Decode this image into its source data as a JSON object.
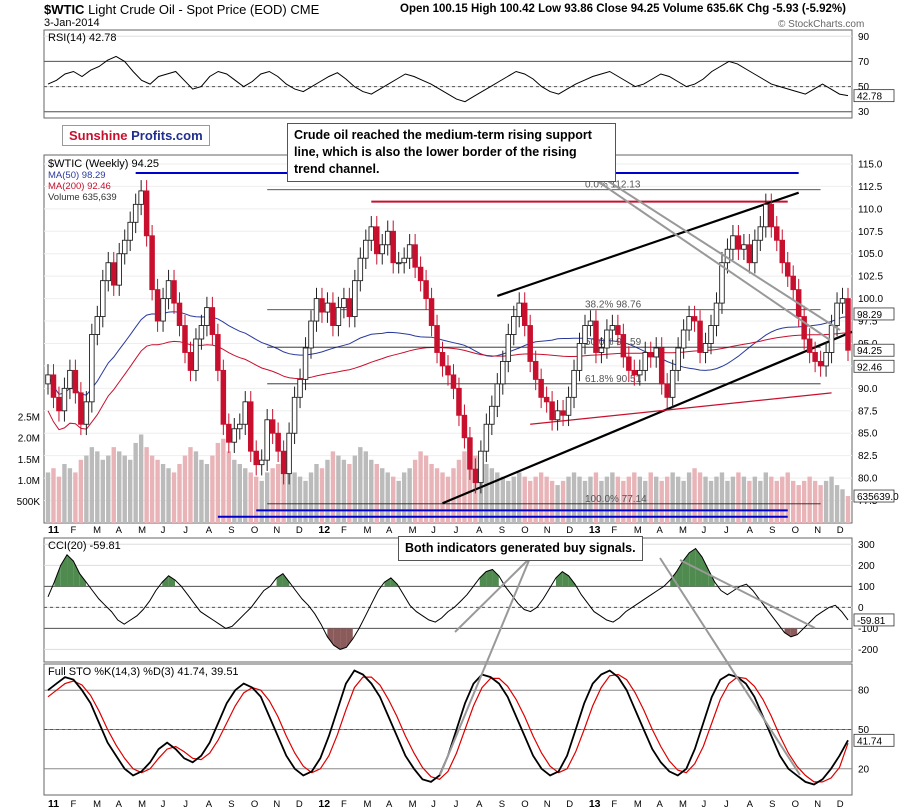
{
  "header": {
    "symbol": "$WTIC",
    "name": "Light Crude Oil - Spot Price (EOD)",
    "exchange": "CME",
    "date": "3-Jan-2014",
    "ohlc": "Open 100.15  High 100.42  Low 93.86  Close 94.25  Volume 635.6K  Chg -5.93 (-5.92%)",
    "watermark": "© StockCharts.com"
  },
  "brand": {
    "part1": "Sunshine",
    "part2": "Profits.com"
  },
  "annotations": {
    "top": "Crude oil reached the medium-term rising support line, which is also the lower border of the rising trend channel.",
    "bottom": "Both indicators generated buy signals."
  },
  "colors": {
    "up": "#222222",
    "down": "#c8102e",
    "ma50": "#2a3a9c",
    "ma200": "#c8102e",
    "blue_line": "#0000cc",
    "green_fill": "#4f8a4f",
    "brown_fill": "#8b5a5a"
  },
  "chart_data": [
    {
      "type": "line",
      "panel": "RSI",
      "title": "RSI(14) 42.78",
      "y_ticks": [
        30,
        50,
        70,
        90
      ],
      "ylim": [
        25,
        95
      ],
      "last_label": "42.78",
      "values": [
        52,
        55,
        60,
        62,
        58,
        63,
        66,
        71,
        74,
        70,
        62,
        55,
        52,
        58,
        60,
        62,
        55,
        48,
        50,
        58,
        62,
        60,
        55,
        50,
        54,
        60,
        62,
        58,
        52,
        48,
        46,
        50,
        54,
        58,
        61,
        56,
        50,
        46,
        44,
        48,
        52,
        56,
        60,
        58,
        55,
        52,
        48,
        44,
        40,
        38,
        42,
        46,
        50,
        54,
        58,
        62,
        60,
        56,
        50,
        46,
        44,
        48,
        52,
        55,
        58,
        60,
        62,
        58,
        54,
        50,
        52,
        56,
        60,
        58,
        54,
        50,
        52,
        56,
        62,
        66,
        70,
        68,
        64,
        60,
        56,
        52,
        50,
        48,
        46,
        44,
        48,
        52,
        48,
        44,
        42.78
      ]
    },
    {
      "type": "candlestick",
      "panel": "price",
      "title": "$WTIC (Weekly) 94.25",
      "legend": [
        "MA(50) 98.29",
        "MA(200) 92.46",
        "Volume 635,639"
      ],
      "y_ticks": [
        77.5,
        80,
        82.5,
        85,
        87.5,
        90,
        92.5,
        95,
        97.5,
        100,
        102.5,
        105,
        107.5,
        110,
        112.5,
        115
      ],
      "ylim": [
        75,
        116
      ],
      "vol_ticks": [
        "500K",
        "1.0M",
        "1.5M",
        "2.0M",
        "2.5M"
      ],
      "fib_labels": [
        "0.0% 112.13",
        "38.2% 98.76",
        "50.0% 94.59",
        "61.8% 90.51",
        "100.0% 77.14"
      ],
      "fib_levels": [
        112.13,
        98.76,
        94.59,
        90.51,
        77.14
      ],
      "right_labels": [
        "98.29",
        "94.25",
        "92.46",
        "635639.0"
      ],
      "x_labels": [
        "11",
        "F",
        "M",
        "A",
        "M",
        "J",
        "J",
        "A",
        "S",
        "O",
        "N",
        "D",
        "12",
        "F",
        "M",
        "A",
        "M",
        "J",
        "J",
        "A",
        "S",
        "O",
        "N",
        "D",
        "13",
        "F",
        "M",
        "A",
        "M",
        "J",
        "J",
        "A",
        "S",
        "O",
        "N",
        "D"
      ],
      "bold_x_labels": [
        "11",
        "12",
        "13"
      ],
      "close": [
        91.5,
        89.0,
        87.5,
        90.0,
        92.0,
        89.5,
        86.0,
        88.5,
        96.0,
        98.0,
        102.0,
        104.0,
        101.5,
        105.0,
        106.5,
        108.5,
        110.5,
        112.0,
        107.0,
        101.0,
        97.5,
        100.0,
        102.0,
        99.5,
        97.0,
        94.0,
        92.0,
        95.5,
        97.0,
        99.0,
        96.0,
        92.0,
        86.0,
        84.0,
        85.5,
        86.0,
        88.5,
        83.0,
        81.5,
        82.0,
        86.5,
        85.0,
        83.0,
        80.5,
        85.0,
        89.0,
        91.0,
        94.5,
        97.5,
        100.0,
        98.5,
        99.5,
        97.0,
        99.0,
        100.0,
        98.0,
        102.0,
        104.5,
        106.5,
        108.0,
        105.0,
        106.0,
        107.5,
        104.0,
        104.0,
        104.5,
        106.0,
        103.5,
        102.0,
        100.0,
        97.0,
        94.0,
        92.5,
        91.5,
        90.0,
        87.0,
        84.5,
        81.0,
        79.5,
        83.0,
        86.0,
        88.0,
        90.5,
        93.0,
        96.0,
        98.0,
        99.5,
        97.0,
        93.0,
        91.0,
        89.0,
        88.5,
        86.5,
        87.5,
        87.0,
        89.0,
        92.0,
        95.0,
        97.0,
        97.5,
        94.0,
        94.5,
        96.5,
        97.0,
        96.0,
        93.5,
        92.0,
        91.5,
        92.0,
        94.0,
        93.5,
        94.5,
        90.5,
        89.0,
        92.0,
        94.5,
        96.5,
        98.0,
        97.5,
        94.0,
        95.0,
        97.0,
        99.5,
        104.0,
        105.5,
        107.0,
        105.5,
        106.0,
        104.0,
        106.5,
        108.0,
        110.5,
        108.0,
        106.5,
        104.0,
        102.5,
        101.0,
        98.0,
        95.5,
        94.0,
        93.0,
        92.5,
        94.0,
        97.0,
        99.5,
        100.0,
        94.25
      ],
      "volume_m": [
        1.2,
        1.3,
        1.1,
        1.4,
        1.3,
        1.2,
        1.5,
        1.6,
        1.8,
        1.7,
        1.5,
        1.6,
        1.8,
        1.7,
        1.6,
        1.5,
        1.9,
        2.1,
        1.8,
        1.6,
        1.5,
        1.4,
        1.3,
        1.2,
        1.4,
        1.6,
        1.8,
        1.7,
        1.5,
        1.4,
        1.6,
        1.9,
        2.0,
        1.7,
        1.5,
        1.4,
        1.3,
        1.2,
        1.1,
        1.0,
        1.2,
        1.3,
        1.4,
        1.5,
        1.3,
        1.2,
        1.1,
        1.0,
        1.2,
        1.4,
        1.3,
        1.5,
        1.7,
        1.6,
        1.5,
        1.4,
        1.6,
        1.8,
        1.7,
        1.5,
        1.4,
        1.3,
        1.2,
        1.1,
        1.0,
        1.2,
        1.3,
        1.5,
        1.7,
        1.6,
        1.4,
        1.3,
        1.2,
        1.1,
        1.3,
        1.5,
        1.7,
        1.8,
        1.6,
        1.5,
        1.4,
        1.3,
        1.2,
        1.1,
        1.0,
        1.1,
        1.2,
        1.1,
        1.0,
        1.1,
        1.2,
        1.1,
        1.0,
        0.9,
        1.0,
        1.1,
        1.2,
        1.1,
        1.0,
        1.1,
        1.2,
        1.0,
        1.1,
        1.2,
        1.1,
        1.0,
        1.1,
        1.2,
        1.1,
        1.0,
        1.2,
        1.1,
        1.0,
        1.1,
        1.2,
        1.1,
        1.0,
        1.2,
        1.3,
        1.2,
        1.1,
        1.0,
        1.1,
        1.2,
        1.0,
        1.1,
        1.2,
        1.1,
        1.0,
        1.1,
        1.0,
        1.2,
        1.1,
        1.0,
        1.1,
        1.2,
        1.0,
        0.9,
        1.0,
        1.1,
        1.0,
        0.9,
        1.0,
        1.1,
        0.9,
        0.8,
        0.64
      ]
    },
    {
      "type": "area",
      "panel": "CCI",
      "title": "CCI(20) -59.81",
      "y_ticks": [
        -200,
        -100,
        0,
        100,
        200,
        300
      ],
      "ylim": [
        -260,
        330
      ],
      "last_label": "-59.81",
      "values": [
        50,
        120,
        200,
        250,
        220,
        160,
        120,
        80,
        40,
        10,
        -20,
        -60,
        -80,
        -60,
        -40,
        -10,
        30,
        80,
        120,
        150,
        130,
        100,
        60,
        20,
        -20,
        -40,
        -60,
        -80,
        -100,
        -90,
        -60,
        -30,
        0,
        40,
        80,
        100,
        140,
        160,
        120,
        80,
        40,
        10,
        -30,
        -80,
        -140,
        -180,
        -200,
        -190,
        -150,
        -100,
        -40,
        20,
        80,
        120,
        140,
        110,
        60,
        10,
        -20,
        -40,
        -60,
        -70,
        -50,
        -20,
        0,
        30,
        60,
        100,
        140,
        170,
        180,
        150,
        100,
        60,
        20,
        -10,
        -20,
        0,
        40,
        90,
        140,
        170,
        150,
        110,
        60,
        20,
        -20,
        -40,
        -60,
        -70,
        -50,
        -20,
        0,
        20,
        40,
        60,
        80,
        100,
        130,
        170,
        220,
        260,
        280,
        240,
        180,
        120,
        80,
        60,
        80,
        100,
        110,
        80,
        40,
        0,
        -40,
        -80,
        -120,
        -140,
        -130,
        -100,
        -70,
        -40,
        -20,
        0,
        10,
        -20,
        -59.81
      ]
    },
    {
      "type": "line",
      "panel": "Full STO",
      "title": "Full STO %K(14,3) %D(3) 41.74, 39.51",
      "y_ticks": [
        20,
        50,
        80
      ],
      "ylim": [
        0,
        100
      ],
      "k_last": 41.74,
      "d_last": 39.51,
      "k": [
        80,
        85,
        90,
        88,
        80,
        70,
        55,
        40,
        30,
        20,
        15,
        18,
        25,
        35,
        40,
        35,
        28,
        25,
        30,
        40,
        55,
        70,
        80,
        85,
        82,
        75,
        60,
        45,
        30,
        20,
        15,
        18,
        28,
        45,
        65,
        85,
        95,
        92,
        85,
        75,
        60,
        45,
        30,
        20,
        12,
        10,
        15,
        30,
        50,
        70,
        85,
        92,
        90,
        85,
        75,
        60,
        45,
        30,
        20,
        15,
        18,
        30,
        50,
        70,
        85,
        92,
        95,
        90,
        80,
        65,
        50,
        35,
        25,
        18,
        15,
        20,
        35,
        55,
        75,
        88,
        92,
        90,
        85,
        75,
        60,
        45,
        30,
        20,
        15,
        10,
        8,
        12,
        20,
        30,
        41.74
      ],
      "d": [
        75,
        80,
        85,
        87,
        84,
        76,
        64,
        50,
        38,
        28,
        20,
        17,
        20,
        28,
        35,
        37,
        33,
        28,
        27,
        32,
        42,
        55,
        68,
        78,
        82,
        80,
        72,
        60,
        45,
        32,
        22,
        17,
        20,
        30,
        46,
        65,
        82,
        90,
        90,
        84,
        73,
        60,
        45,
        32,
        21,
        14,
        12,
        18,
        32,
        50,
        68,
        82,
        89,
        89,
        83,
        73,
        60,
        45,
        32,
        22,
        17,
        20,
        33,
        50,
        68,
        82,
        91,
        92,
        88,
        78,
        65,
        50,
        37,
        26,
        19,
        17,
        24,
        37,
        55,
        73,
        85,
        90,
        89,
        83,
        73,
        60,
        45,
        32,
        22,
        15,
        10,
        10,
        13,
        21,
        39.51
      ]
    }
  ]
}
